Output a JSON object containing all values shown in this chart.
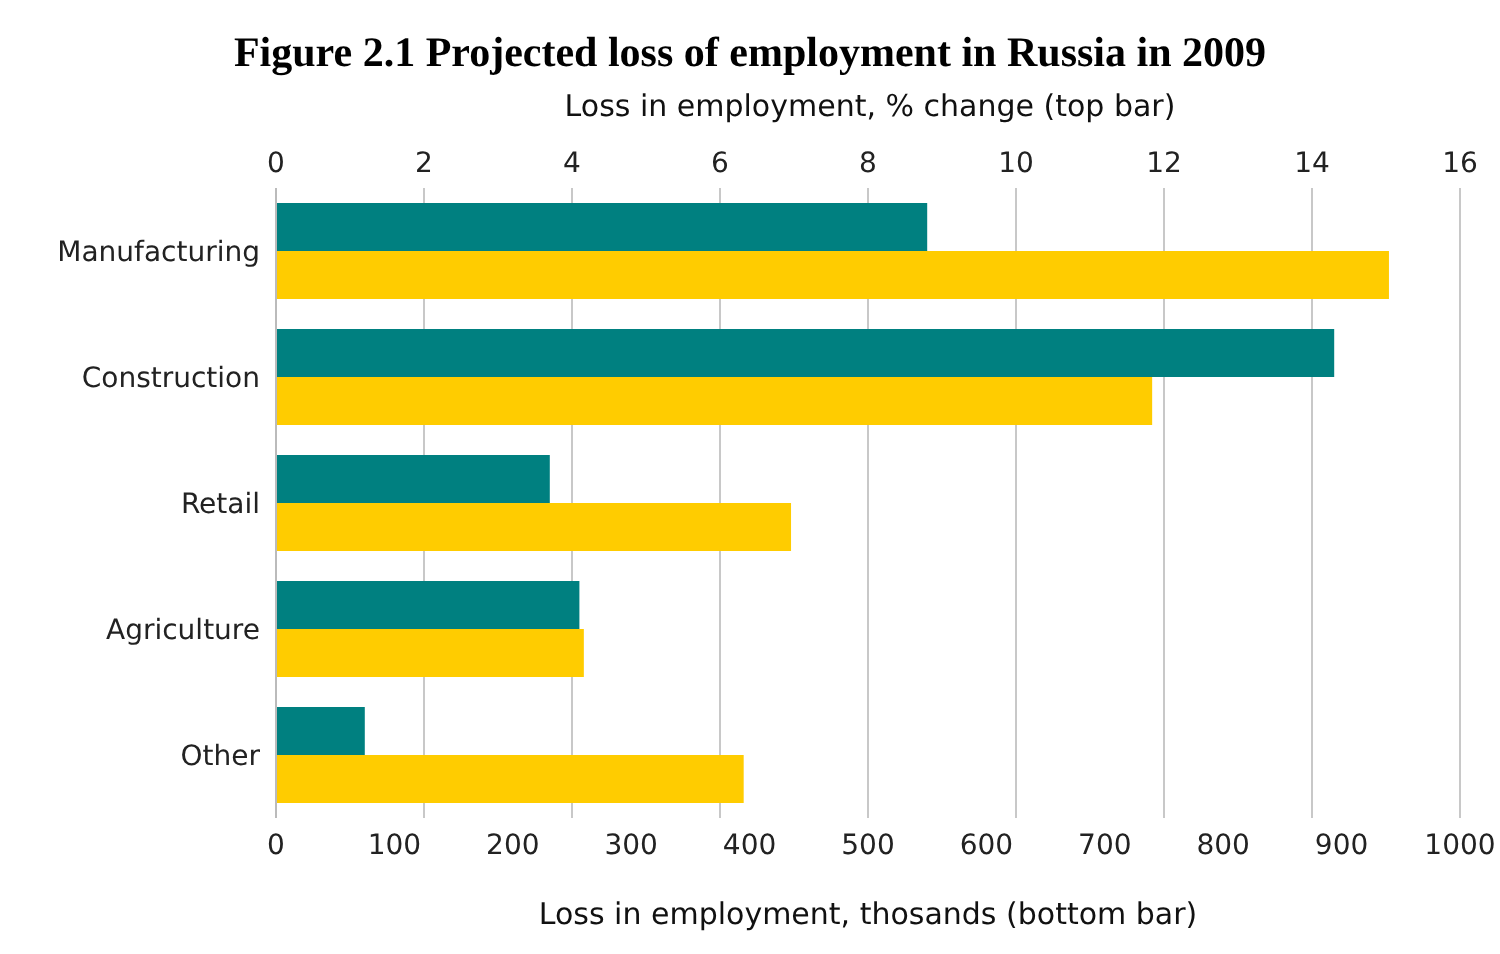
{
  "chart_data": {
    "type": "bar",
    "orientation": "horizontal",
    "title": "Figure 2.1 Projected loss of employment in Russia in 2009",
    "categories": [
      "Manufacturing",
      "Construction",
      "Retail",
      "Agriculture",
      "Other"
    ],
    "series": [
      {
        "color": "#008080",
        "values": [
          8.8,
          14.3,
          3.7,
          4.1,
          1.2
        ],
        "axis": "x2"
      },
      {
        "color": "#ffcc00",
        "values": [
          940,
          740,
          435,
          260,
          395
        ]
      }
    ],
    "xlabel": "Loss in employment, thosands (bottom bar)",
    "xlim": [
      0,
      1000
    ],
    "xticks": [
      0,
      100,
      200,
      300,
      400,
      500,
      600,
      700,
      800,
      900,
      1000
    ],
    "x2label": "Loss in employment, % change (top bar)",
    "x2lim": [
      0,
      16
    ],
    "x2ticks": [
      0,
      2,
      4,
      6,
      8,
      10,
      12,
      14,
      16
    ],
    "grid": "x2",
    "legend": false
  }
}
